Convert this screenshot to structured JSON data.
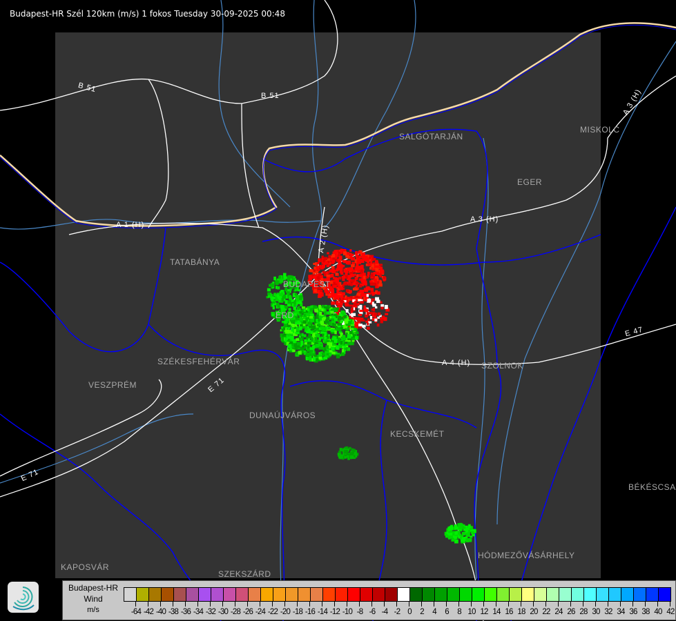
{
  "title": "Budapest-HR Szél 120km (m/s) 1 fokos Tuesday 30-09-2025 00:48",
  "map": {
    "background_color": "#000000",
    "radar_area_color": "#333333",
    "border_color": "#f5d9a8",
    "river_color": "#4a88c8",
    "boundary_color": "#0000ff",
    "road_color": "#ffffff",
    "cities": [
      {
        "name": "SALGÓTARJÁN"
      },
      {
        "name": "MISKOLC"
      },
      {
        "name": "EGER"
      },
      {
        "name": "TATABÁNYA"
      },
      {
        "name": "BUDAPEST"
      },
      {
        "name": "ÉRD"
      },
      {
        "name": "SZOLNOK"
      },
      {
        "name": "SZÉKESFEHÉRVÁR"
      },
      {
        "name": "VESZPRÉM"
      },
      {
        "name": "DUNAÚJVÁROS"
      },
      {
        "name": "KECSKEMÉT"
      },
      {
        "name": "BÉKÉSCSABA"
      },
      {
        "name": "HÓDMEZŐVÁSÁRHELY"
      },
      {
        "name": "KAPOSVÁR"
      },
      {
        "name": "SZEKSZÁRD"
      }
    ],
    "roads": [
      {
        "name": "B 51"
      },
      {
        "name": "B 51"
      },
      {
        "name": "A 3 (H)"
      },
      {
        "name": "A 3 (H)"
      },
      {
        "name": "A 1 (H)"
      },
      {
        "name": "A 2 (H)"
      },
      {
        "name": "A 4 (H)"
      },
      {
        "name": "E 71"
      },
      {
        "name": "E 71"
      },
      {
        "name": "E 47"
      }
    ]
  },
  "legend": {
    "station": "Budapest-HR",
    "quantity": "Wind",
    "unit": "m/s",
    "labels": [
      "-64",
      "-42",
      "-40",
      "-38",
      "-36",
      "-34",
      "-32",
      "-30",
      "-28",
      "-26",
      "-24",
      "-22",
      "-20",
      "-18",
      "-16",
      "-14",
      "-12",
      "-10",
      "-8",
      "-6",
      "-4",
      "-2",
      "0",
      "2",
      "4",
      "6",
      "8",
      "10",
      "12",
      "14",
      "16",
      "18",
      "20",
      "22",
      "24",
      "26",
      "28",
      "30",
      "32",
      "34",
      "36",
      "38",
      "40",
      "42"
    ],
    "colors": [
      "#d4d4d4",
      "#b0b000",
      "#a87800",
      "#a85000",
      "#a85050",
      "#a850a0",
      "#a850f0",
      "#b050d0",
      "#c850a8",
      "#d05078",
      "#e88048",
      "#f8a800",
      "#f8a018",
      "#f09828",
      "#f09030",
      "#e88048",
      "#ff4000",
      "#ff2000",
      "#ff0000",
      "#e00000",
      "#c00000",
      "#a00000",
      "#ffffff",
      "#006800",
      "#008800",
      "#00a000",
      "#00b800",
      "#00d800",
      "#00f000",
      "#40ff00",
      "#80f030",
      "#b8f048",
      "#ffff80",
      "#d8ff98",
      "#b0ffb0",
      "#98ffd0",
      "#70ffe0",
      "#50ffff",
      "#38e0ff",
      "#20c8ff",
      "#00a8ff",
      "#0070ff",
      "#0038ff",
      "#0000ff"
    ]
  }
}
